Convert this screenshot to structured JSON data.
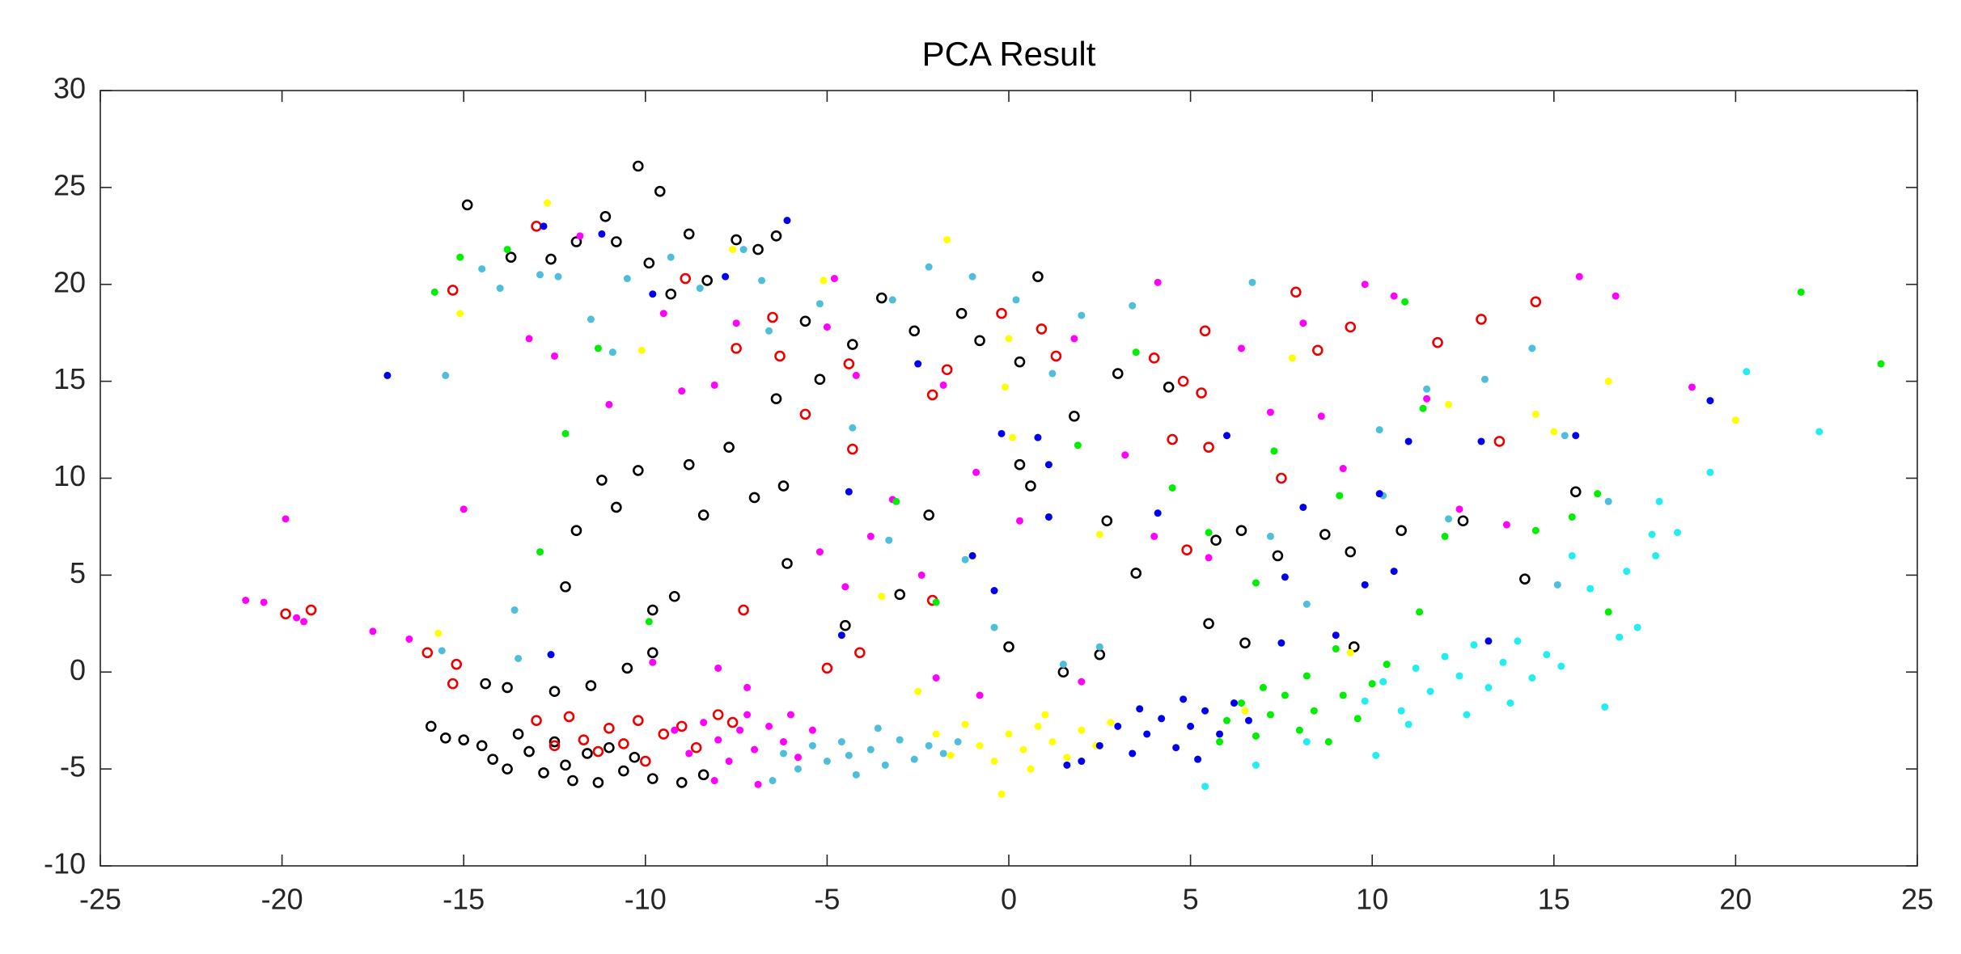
{
  "chart_data": {
    "type": "scatter",
    "title": "PCA Result",
    "xlim": [
      -25,
      25
    ],
    "xticks": [
      -25,
      -20,
      -15,
      -10,
      -5,
      0,
      5,
      10,
      15,
      20,
      25
    ],
    "ylim": [
      -10,
      30
    ],
    "yticks": [
      -10,
      -5,
      0,
      5,
      10,
      15,
      20,
      25,
      30
    ],
    "grid": false,
    "box": true,
    "series": [
      {
        "color": "#000000",
        "marker": "o",
        "x": [
          -15.9,
          -15.5,
          -15,
          -14.5,
          -14.2,
          -13.8,
          -13.5,
          -13.2,
          -12.8,
          -12.5,
          -12.2,
          -12,
          -11.6,
          -11.3,
          -11,
          -10.6,
          -10.3,
          -9.8,
          -9,
          -8.4,
          -14.4,
          -13.8,
          -12.5,
          -11.5,
          -10.5,
          -9.8,
          -12.2,
          -11.9,
          -11.2,
          -10.8,
          -10.2,
          -9.8,
          -9.2,
          -8.8,
          -8.4,
          -7.7,
          -7,
          -6.4,
          -6.1,
          -6.2,
          -14.9,
          -13.7,
          -12.6,
          -11.9,
          -11.1,
          -10.8,
          -10.2,
          -9.6,
          -9.9,
          -9.3,
          -8.8,
          -8.3,
          -7.5,
          -6.9,
          -6.4,
          -5.6,
          -5.2,
          -4.3,
          -3.5,
          -2.6,
          -1.3,
          -0.8,
          0.3,
          0.8,
          1.8,
          3,
          4.4,
          0.6,
          0.3,
          2.7,
          -2.2,
          -3,
          -4.5,
          0,
          1.5,
          2.5,
          3.5,
          5.7,
          6.4,
          7.4,
          8.7,
          9.4,
          9.5,
          10.8,
          12.5,
          14.2,
          15.6,
          5.5,
          6.5
        ],
        "y": [
          -2.8,
          -3.4,
          -3.5,
          -3.8,
          -4.5,
          -5,
          -3.2,
          -4.1,
          -5.2,
          -3.6,
          -4.8,
          -5.6,
          -4.2,
          -5.7,
          -3.9,
          -5.1,
          -4.4,
          -5.5,
          -5.7,
          -5.3,
          -0.6,
          -0.8,
          -1,
          -0.7,
          0.2,
          1,
          4.4,
          7.3,
          9.9,
          8.5,
          10.4,
          3.2,
          3.9,
          10.7,
          8.1,
          11.6,
          9,
          14.1,
          5.6,
          9.6,
          24.1,
          21.4,
          21.3,
          22.2,
          23.5,
          22.2,
          26.1,
          24.8,
          21.1,
          19.5,
          22.6,
          20.2,
          22.3,
          21.8,
          22.5,
          18.1,
          15.1,
          16.9,
          19.3,
          17.6,
          18.5,
          17.1,
          16,
          20.4,
          13.2,
          15.4,
          14.7,
          9.6,
          10.7,
          7.8,
          8.1,
          4,
          2.4,
          1.3,
          0,
          0.9,
          5.1,
          6.8,
          7.3,
          6,
          7.1,
          6.2,
          1.3,
          7.3,
          7.8,
          4.8,
          9.3,
          2.5,
          1.5
        ]
      },
      {
        "color": "#ee0000",
        "marker": "o",
        "x": [
          -13,
          -12.5,
          -12.1,
          -11.7,
          -11.3,
          -11,
          -10.6,
          -10.2,
          -10,
          -9.5,
          -9,
          -8.6,
          -8,
          -7.6,
          -19.9,
          -19.2,
          -16,
          -15.2,
          -15.3,
          -15.3,
          -13,
          -8.9,
          -7.5,
          -6.5,
          -6.3,
          -5.6,
          -4.4,
          -4.3,
          -1.7,
          -2.1,
          -0.2,
          0.9,
          1.3,
          4,
          5.4,
          4.8,
          5.3,
          4.5,
          5.5,
          7.5,
          7.9,
          8.5,
          9.4,
          11.8,
          13,
          14.5,
          13.5,
          4.9,
          -5,
          -4.1,
          -2.1,
          -7.3
        ],
        "y": [
          -2.5,
          -3.8,
          -2.3,
          -3.5,
          -4.1,
          -2.9,
          -3.7,
          -2.5,
          -4.6,
          -3.2,
          -2.8,
          -3.9,
          -2.2,
          -2.6,
          3,
          3.2,
          1,
          0.4,
          -0.6,
          19.7,
          23,
          20.3,
          16.7,
          18.3,
          16.3,
          13.3,
          15.9,
          11.5,
          15.6,
          14.3,
          18.5,
          17.7,
          16.3,
          16.2,
          17.6,
          15,
          14.4,
          12,
          11.6,
          10,
          19.6,
          16.6,
          17.8,
          17,
          18.2,
          19.1,
          11.9,
          6.3,
          0.2,
          1,
          3.7,
          3.2
        ]
      },
      {
        "color": "#ff00ff",
        "marker": ".",
        "x": [
          -9.2,
          -8.8,
          -8.4,
          -8,
          -7.7,
          -7.4,
          -7,
          -6.6,
          -6.2,
          -5.8,
          -5.4,
          -6.9,
          -8.1,
          -7.2,
          -6,
          -21,
          -20.5,
          -19.9,
          -19.6,
          -19.4,
          -17.5,
          -16.5,
          -15,
          -13.2,
          -12.5,
          -11.8,
          -11,
          -9.5,
          -9,
          -8.1,
          -7.5,
          -5,
          -4.8,
          -4.2,
          -3.2,
          -3.8,
          -5.2,
          -4.5,
          -2.4,
          -1.8,
          -0.9,
          0.3,
          1.8,
          3.2,
          4,
          4.1,
          5.5,
          6.4,
          7.2,
          8.1,
          8.6,
          9.2,
          9.8,
          10.6,
          11.5,
          12.4,
          13.7,
          15.7,
          16.7,
          18.8,
          -8,
          -9.8,
          -7.2,
          -2,
          -0.8,
          2
        ],
        "y": [
          -3,
          -4.2,
          -2.6,
          -3.5,
          -4.6,
          -3,
          -4,
          -2.8,
          -3.6,
          -4.4,
          -3,
          -5.8,
          -5.6,
          -2.2,
          -2.2,
          3.7,
          3.6,
          7.9,
          2.8,
          2.6,
          2.1,
          1.7,
          8.4,
          17.2,
          16.3,
          22.5,
          13.8,
          18.5,
          14.5,
          14.8,
          18,
          17.8,
          20.3,
          15.3,
          8.9,
          7,
          6.2,
          4.4,
          5,
          14.8,
          10.3,
          7.8,
          17.2,
          11.2,
          7,
          20.1,
          5.9,
          16.7,
          13.4,
          18,
          13.2,
          10.5,
          20,
          19.4,
          14.1,
          8.4,
          7.6,
          20.4,
          19.4,
          14.7,
          0.2,
          0.5,
          -0.8,
          -0.3,
          -1.2,
          -0.5
        ]
      },
      {
        "color": "#4dbfda",
        "marker": ".",
        "x": [
          -6.2,
          -5.8,
          -5.4,
          -5,
          -4.6,
          -4.2,
          -3.8,
          -3.4,
          -3,
          -2.6,
          -2.2,
          -1.8,
          -1.4,
          -4.4,
          -6.5,
          -3.6,
          -15.6,
          -15.5,
          -13.6,
          -13.5,
          -12.9,
          -12.4,
          -14,
          -14.5,
          -11.5,
          -10.9,
          -10.5,
          -9.3,
          -8.5,
          -7.3,
          -6.8,
          -6.6,
          -5.2,
          -3.2,
          -2.2,
          -1,
          0.2,
          1.2,
          2,
          3.4,
          -4.3,
          -3.3,
          -1.2,
          -0.4,
          1.5,
          2.5,
          6.7,
          7.2,
          8.2,
          10.2,
          11.5,
          13.1,
          14.4,
          15.3,
          16.5,
          15.1,
          12.1,
          10.3
        ],
        "y": [
          -4.2,
          -5,
          -3.8,
          -4.6,
          -3.6,
          -5.3,
          -4,
          -4.8,
          -3.5,
          -4.5,
          -3.8,
          -4.2,
          -3.6,
          -4.3,
          -5.6,
          -2.9,
          1.1,
          15.3,
          3.2,
          0.7,
          20.5,
          20.4,
          19.8,
          20.8,
          18.2,
          16.5,
          20.3,
          21.4,
          19.8,
          21.8,
          20.2,
          17.6,
          19,
          19.2,
          20.9,
          20.4,
          19.2,
          15.4,
          18.4,
          18.9,
          12.6,
          6.8,
          5.8,
          2.3,
          0.4,
          1.3,
          20.1,
          7,
          3.5,
          12.5,
          14.6,
          15.1,
          16.7,
          12.2,
          8.8,
          4.5,
          7.9,
          9.1
        ]
      },
      {
        "color": "#ffff00",
        "marker": ".",
        "x": [
          -2,
          -1.6,
          -1.2,
          -0.8,
          -0.4,
          0,
          0.4,
          0.8,
          1.2,
          1.6,
          2,
          2.4,
          2.8,
          -0.2,
          0.6,
          1,
          -15.1,
          -12.7,
          -10.1,
          -7.6,
          -5.1,
          -1.7,
          0,
          -0.1,
          0.1,
          2.5,
          -15.7,
          7.8,
          12.1,
          14.5,
          15,
          16.5,
          20,
          9.4,
          -3.5,
          6.5,
          -2.5
        ],
        "y": [
          -3.2,
          -4.3,
          -2.7,
          -3.8,
          -4.6,
          -3.2,
          -4,
          -2.8,
          -3.6,
          -4.4,
          -3,
          -3.8,
          -2.6,
          -6.3,
          -5,
          -2.2,
          18.5,
          24.2,
          16.6,
          21.8,
          20.2,
          22.3,
          17.2,
          14.7,
          12.1,
          7.1,
          2,
          16.2,
          13.8,
          13.3,
          12.4,
          15,
          13,
          1,
          3.9,
          -2,
          -1
        ]
      },
      {
        "color": "#0000ee",
        "marker": ".",
        "x": [
          2.5,
          3,
          3.4,
          3.8,
          4.2,
          4.6,
          5,
          5.4,
          5.8,
          6.2,
          3.6,
          4.8,
          2,
          5.2,
          6.6,
          1.6,
          -17.1,
          -12.8,
          -11.2,
          -9.8,
          -7.8,
          -6.1,
          -4.4,
          -2.5,
          -1,
          -0.4,
          0.8,
          -0.2,
          1.1,
          1.1,
          4.1,
          6,
          7.5,
          7.6,
          8.1,
          9,
          9.8,
          10.2,
          10.6,
          11,
          13,
          13.2,
          15.6,
          19.3,
          -12.6,
          -4.6
        ],
        "y": [
          -3.8,
          -2.8,
          -4.2,
          -3.2,
          -2.4,
          -3.9,
          -2.8,
          -2,
          -3.2,
          -1.6,
          -1.9,
          -1.4,
          -4.6,
          -4.5,
          -2.5,
          -4.8,
          15.3,
          23,
          22.6,
          19.5,
          20.4,
          23.3,
          9.3,
          15.9,
          6,
          4.2,
          12.1,
          12.3,
          8,
          10.7,
          8.2,
          12.2,
          1.5,
          4.9,
          8.5,
          1.9,
          4.5,
          9.2,
          5.2,
          11.9,
          11.9,
          1.6,
          12.2,
          14,
          0.9,
          1.9
        ]
      },
      {
        "color": "#00ee00",
        "marker": ".",
        "x": [
          6,
          6.4,
          6.8,
          7.2,
          7.6,
          8,
          8.4,
          8.8,
          9.2,
          9.6,
          10,
          7,
          8.2,
          5.8,
          10.4,
          9,
          -15.8,
          -15.1,
          -13.8,
          -12.9,
          -12.2,
          -11.3,
          -9.9,
          -3.1,
          -2,
          1.9,
          3.5,
          4.5,
          5.5,
          7.3,
          6.8,
          9.1,
          10.9,
          11.4,
          12,
          14.5,
          15.5,
          16.2,
          16.5,
          21.8,
          24,
          11.3
        ],
        "y": [
          -2.5,
          -1.6,
          -3.3,
          -2.2,
          -1.2,
          -3,
          -2,
          -3.6,
          -1.2,
          -2.4,
          -0.6,
          -0.8,
          -0.2,
          -3.6,
          0.4,
          1.2,
          19.6,
          21.4,
          21.8,
          6.2,
          12.3,
          16.7,
          2.6,
          8.8,
          3.6,
          11.7,
          16.5,
          9.5,
          7.2,
          11.4,
          4.6,
          9.1,
          19.1,
          13.6,
          7,
          7.3,
          8,
          9.2,
          3.1,
          19.6,
          15.9,
          3.1
        ]
      },
      {
        "color": "#22eef0",
        "marker": ".",
        "x": [
          9.8,
          10.3,
          10.8,
          11.2,
          11.6,
          12,
          12.4,
          12.8,
          13.2,
          13.6,
          14,
          14.4,
          14.8,
          15.2,
          11,
          12.6,
          10.1,
          13.8,
          5.4,
          6.8,
          8.2,
          16.4,
          16.8,
          17.3,
          17,
          17.7,
          17.9,
          17.8,
          18.4,
          19.3,
          20.3,
          22.3,
          16,
          15.5
        ],
        "y": [
          -1.5,
          -0.5,
          -2,
          0.2,
          -1,
          0.8,
          -0.2,
          1.4,
          -0.8,
          0.5,
          1.6,
          -0.3,
          0.9,
          0.3,
          -2.7,
          -2.2,
          -4.3,
          -1.6,
          -5.9,
          -4.8,
          -3.6,
          -1.8,
          1.8,
          2.3,
          5.2,
          7.1,
          8.8,
          6,
          7.2,
          10.3,
          15.5,
          12.4,
          4.3,
          6
        ]
      }
    ]
  }
}
